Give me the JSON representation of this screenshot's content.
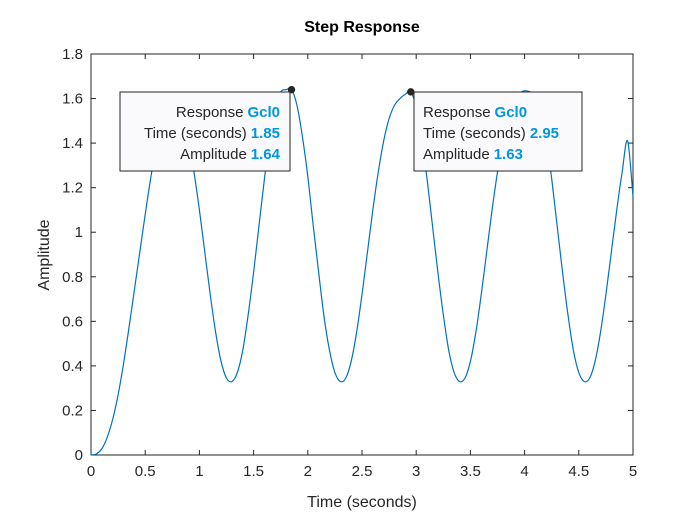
{
  "chart_data": {
    "type": "line",
    "title": "Step Response",
    "xlabel": "Time (seconds)",
    "ylabel": "Amplitude",
    "xlim": [
      0,
      5
    ],
    "ylim": [
      0,
      1.8
    ],
    "xticks": [
      "0",
      "0.5",
      "1",
      "1.5",
      "2",
      "2.5",
      "3",
      "3.5",
      "4",
      "4.5",
      "5"
    ],
    "yticks": [
      "0",
      "0.2",
      "0.4",
      "0.6",
      "0.8",
      "1",
      "1.2",
      "1.4",
      "1.6",
      "1.8"
    ],
    "grid": false,
    "line_color": "#0072bd",
    "series": [
      {
        "name": "Gcl0",
        "x": [
          0,
          0.05,
          0.1,
          0.15,
          0.2,
          0.25,
          0.3,
          0.35,
          0.4,
          0.45,
          0.5,
          0.55,
          0.6,
          0.65,
          0.7,
          0.75,
          0.8,
          0.85,
          0.9,
          0.95,
          1.0,
          1.05,
          1.1,
          1.15,
          1.2,
          1.25,
          1.3,
          1.35,
          1.4,
          1.45,
          1.5,
          1.55,
          1.6,
          1.65,
          1.7,
          1.75,
          1.8,
          1.85,
          1.9,
          1.95,
          2.0,
          2.05,
          2.1,
          2.15,
          2.2,
          2.25,
          2.3,
          2.35,
          2.4,
          2.45,
          2.5,
          2.55,
          2.6,
          2.65,
          2.7,
          2.75,
          2.8,
          2.85,
          2.9,
          2.95,
          3.0,
          3.05,
          3.1,
          3.15,
          3.2,
          3.25,
          3.3,
          3.35,
          3.4,
          3.45,
          3.5,
          3.55,
          3.6,
          3.65,
          3.7,
          3.75,
          3.8,
          3.85,
          3.9,
          3.95,
          4.0,
          4.05,
          4.1,
          4.15,
          4.2,
          4.25,
          4.3,
          4.35,
          4.4,
          4.45,
          4.5,
          4.55,
          4.6,
          4.65,
          4.7,
          4.75,
          4.8,
          4.85,
          4.9,
          4.95,
          5.0
        ],
        "values": [
          0,
          0.005,
          0.028,
          0.08,
          0.16,
          0.27,
          0.41,
          0.57,
          0.74,
          0.91,
          1.08,
          1.24,
          1.38,
          1.49,
          1.56,
          1.585,
          1.57,
          1.51,
          1.41,
          1.27,
          1.1,
          0.91,
          0.72,
          0.55,
          0.42,
          0.345,
          0.33,
          0.37,
          0.47,
          0.63,
          0.82,
          1.03,
          1.24,
          1.42,
          1.56,
          1.63,
          1.64,
          1.64,
          1.57,
          1.43,
          1.25,
          1.03,
          0.82,
          0.62,
          0.47,
          0.37,
          0.33,
          0.345,
          0.42,
          0.55,
          0.72,
          0.91,
          1.1,
          1.27,
          1.41,
          1.51,
          1.57,
          1.6,
          1.62,
          1.63,
          1.56,
          1.42,
          1.24,
          1.03,
          0.82,
          0.63,
          0.47,
          0.37,
          0.33,
          0.345,
          0.42,
          0.55,
          0.72,
          0.91,
          1.1,
          1.27,
          1.41,
          1.51,
          1.57,
          1.62,
          1.635,
          1.63,
          1.62,
          1.56,
          1.42,
          1.24,
          1.03,
          0.82,
          0.63,
          0.47,
          0.37,
          0.33,
          0.345,
          0.42,
          0.55,
          0.72,
          0.91,
          1.1,
          1.27,
          1.41,
          1.16
        ]
      }
    ],
    "datatips": [
      {
        "x": 1.85,
        "y": 1.64,
        "response_label": "Response",
        "response_value": "Gcl0",
        "time_label": "Time (seconds)",
        "time_value": "1.85",
        "amp_label": "Amplitude",
        "amp_value": "1.64"
      },
      {
        "x": 2.95,
        "y": 1.63,
        "response_label": "Response",
        "response_value": "Gcl0",
        "time_label": "Time (seconds)",
        "time_value": "2.95",
        "amp_label": "Amplitude",
        "amp_value": "1.63"
      }
    ]
  }
}
